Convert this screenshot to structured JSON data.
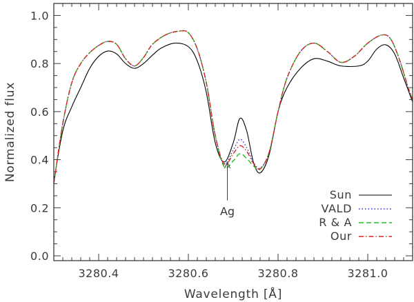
{
  "chart_data": {
    "type": "line",
    "title": "",
    "xlabel": "Wavelength [Å]",
    "ylabel": "Normalized flux",
    "xlim": [
      3280.3,
      3281.1
    ],
    "ylim": [
      -0.02,
      1.05
    ],
    "xticks": [
      3280.4,
      3280.6,
      3280.8,
      3281.0
    ],
    "xtick_labels": [
      "3280.4",
      "3280.6",
      "3280.8",
      "3281.0"
    ],
    "yticks": [
      0.0,
      0.2,
      0.4,
      0.6,
      0.8,
      1.0
    ],
    "ytick_labels": [
      "0.0",
      "0.2",
      "0.4",
      "0.6",
      "0.8",
      "1.0"
    ],
    "grid": false,
    "legend_position": "bottom-right",
    "annotation": {
      "text": "Ag",
      "x": 3280.687,
      "y_from": 0.23,
      "y_to": 0.39
    },
    "series": [
      {
        "name": "Sun",
        "color": "#000000",
        "dash": "solid",
        "points": [
          [
            3280.3,
            0.31
          ],
          [
            3280.32,
            0.52
          ],
          [
            3280.34,
            0.62
          ],
          [
            3280.36,
            0.7
          ],
          [
            3280.38,
            0.78
          ],
          [
            3280.4,
            0.83
          ],
          [
            3280.42,
            0.852
          ],
          [
            3280.44,
            0.84
          ],
          [
            3280.46,
            0.8
          ],
          [
            3280.48,
            0.78
          ],
          [
            3280.5,
            0.8
          ],
          [
            3280.52,
            0.835
          ],
          [
            3280.54,
            0.865
          ],
          [
            3280.57,
            0.885
          ],
          [
            3280.6,
            0.87
          ],
          [
            3280.62,
            0.81
          ],
          [
            3280.64,
            0.68
          ],
          [
            3280.66,
            0.47
          ],
          [
            3280.68,
            0.39
          ],
          [
            3280.7,
            0.47
          ],
          [
            3280.715,
            0.572
          ],
          [
            3280.73,
            0.52
          ],
          [
            3280.745,
            0.39
          ],
          [
            3280.76,
            0.345
          ],
          [
            3280.78,
            0.42
          ],
          [
            3280.8,
            0.6
          ],
          [
            3280.82,
            0.7
          ],
          [
            3280.85,
            0.78
          ],
          [
            3280.88,
            0.82
          ],
          [
            3280.91,
            0.81
          ],
          [
            3280.94,
            0.79
          ],
          [
            3280.98,
            0.79
          ],
          [
            3281.0,
            0.81
          ],
          [
            3281.02,
            0.86
          ],
          [
            3281.04,
            0.878
          ],
          [
            3281.06,
            0.84
          ],
          [
            3281.08,
            0.74
          ],
          [
            3281.1,
            0.64
          ]
        ]
      },
      {
        "name": "VALD",
        "color": "#2b2bd8",
        "dash": "dotted",
        "points": [
          [
            3280.3,
            0.3
          ],
          [
            3280.32,
            0.55
          ],
          [
            3280.34,
            0.72
          ],
          [
            3280.36,
            0.8
          ],
          [
            3280.38,
            0.845
          ],
          [
            3280.4,
            0.875
          ],
          [
            3280.42,
            0.892
          ],
          [
            3280.44,
            0.88
          ],
          [
            3280.46,
            0.82
          ],
          [
            3280.48,
            0.79
          ],
          [
            3280.5,
            0.825
          ],
          [
            3280.52,
            0.88
          ],
          [
            3280.55,
            0.92
          ],
          [
            3280.58,
            0.935
          ],
          [
            3280.6,
            0.928
          ],
          [
            3280.62,
            0.86
          ],
          [
            3280.64,
            0.72
          ],
          [
            3280.66,
            0.5
          ],
          [
            3280.68,
            0.385
          ],
          [
            3280.7,
            0.44
          ],
          [
            3280.715,
            0.485
          ],
          [
            3280.73,
            0.45
          ],
          [
            3280.745,
            0.39
          ],
          [
            3280.76,
            0.365
          ],
          [
            3280.78,
            0.43
          ],
          [
            3280.8,
            0.6
          ],
          [
            3280.82,
            0.74
          ],
          [
            3280.85,
            0.85
          ],
          [
            3280.88,
            0.885
          ],
          [
            3280.91,
            0.85
          ],
          [
            3280.94,
            0.805
          ],
          [
            3280.97,
            0.83
          ],
          [
            3281.0,
            0.885
          ],
          [
            3281.03,
            0.918
          ],
          [
            3281.05,
            0.905
          ],
          [
            3281.07,
            0.82
          ],
          [
            3281.09,
            0.7
          ],
          [
            3281.1,
            0.65
          ]
        ]
      },
      {
        "name": "R & A",
        "color": "#22bb22",
        "dash": "dashed",
        "points": [
          [
            3280.3,
            0.3
          ],
          [
            3280.32,
            0.55
          ],
          [
            3280.34,
            0.72
          ],
          [
            3280.36,
            0.8
          ],
          [
            3280.38,
            0.845
          ],
          [
            3280.4,
            0.875
          ],
          [
            3280.42,
            0.892
          ],
          [
            3280.44,
            0.88
          ],
          [
            3280.46,
            0.82
          ],
          [
            3280.48,
            0.79
          ],
          [
            3280.5,
            0.825
          ],
          [
            3280.52,
            0.88
          ],
          [
            3280.55,
            0.92
          ],
          [
            3280.58,
            0.935
          ],
          [
            3280.6,
            0.928
          ],
          [
            3280.62,
            0.86
          ],
          [
            3280.64,
            0.72
          ],
          [
            3280.66,
            0.5
          ],
          [
            3280.68,
            0.37
          ],
          [
            3280.7,
            0.395
          ],
          [
            3280.715,
            0.425
          ],
          [
            3280.73,
            0.405
          ],
          [
            3280.745,
            0.375
          ],
          [
            3280.76,
            0.36
          ],
          [
            3280.78,
            0.43
          ],
          [
            3280.8,
            0.6
          ],
          [
            3280.82,
            0.74
          ],
          [
            3280.85,
            0.85
          ],
          [
            3280.88,
            0.885
          ],
          [
            3280.91,
            0.85
          ],
          [
            3280.94,
            0.805
          ],
          [
            3280.97,
            0.83
          ],
          [
            3281.0,
            0.885
          ],
          [
            3281.03,
            0.918
          ],
          [
            3281.05,
            0.905
          ],
          [
            3281.07,
            0.82
          ],
          [
            3281.09,
            0.7
          ],
          [
            3281.1,
            0.65
          ]
        ]
      },
      {
        "name": "Our",
        "color": "#dd2222",
        "dash": "dashdot",
        "points": [
          [
            3280.3,
            0.3
          ],
          [
            3280.32,
            0.55
          ],
          [
            3280.34,
            0.72
          ],
          [
            3280.36,
            0.8
          ],
          [
            3280.38,
            0.845
          ],
          [
            3280.4,
            0.875
          ],
          [
            3280.42,
            0.892
          ],
          [
            3280.44,
            0.88
          ],
          [
            3280.46,
            0.82
          ],
          [
            3280.48,
            0.79
          ],
          [
            3280.5,
            0.825
          ],
          [
            3280.52,
            0.88
          ],
          [
            3280.55,
            0.92
          ],
          [
            3280.58,
            0.935
          ],
          [
            3280.6,
            0.928
          ],
          [
            3280.62,
            0.86
          ],
          [
            3280.64,
            0.72
          ],
          [
            3280.66,
            0.5
          ],
          [
            3280.68,
            0.38
          ],
          [
            3280.7,
            0.425
          ],
          [
            3280.715,
            0.458
          ],
          [
            3280.73,
            0.435
          ],
          [
            3280.745,
            0.385
          ],
          [
            3280.76,
            0.362
          ],
          [
            3280.78,
            0.43
          ],
          [
            3280.8,
            0.6
          ],
          [
            3280.82,
            0.74
          ],
          [
            3280.85,
            0.85
          ],
          [
            3280.88,
            0.885
          ],
          [
            3280.91,
            0.85
          ],
          [
            3280.94,
            0.805
          ],
          [
            3280.97,
            0.83
          ],
          [
            3281.0,
            0.885
          ],
          [
            3281.03,
            0.918
          ],
          [
            3281.05,
            0.905
          ],
          [
            3281.07,
            0.82
          ],
          [
            3281.09,
            0.7
          ],
          [
            3281.1,
            0.65
          ]
        ]
      }
    ]
  }
}
